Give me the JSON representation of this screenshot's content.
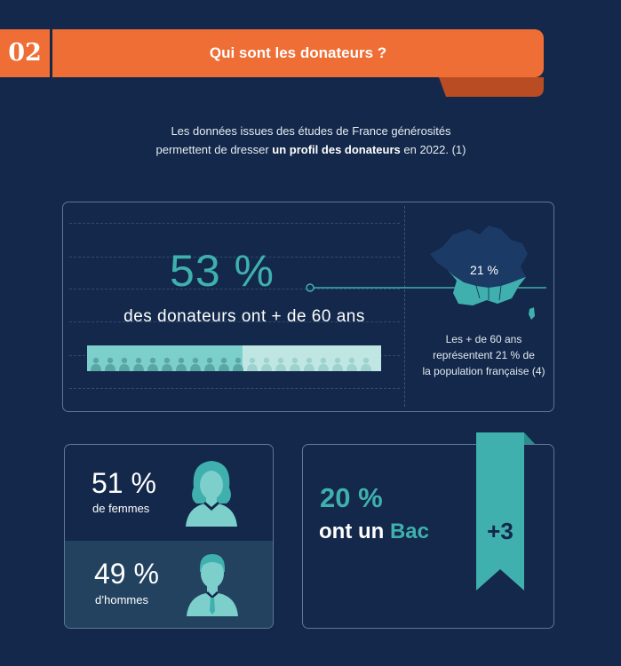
{
  "header": {
    "number": "02",
    "title": "Qui sont les donateurs ?"
  },
  "intro": {
    "line1": "Les données issues des études de France générosités",
    "line2_pre": "permettent de dresser ",
    "line2_bold": "un profil des donateurs",
    "line2_post": " en 2022. (1)"
  },
  "age_stat": {
    "percent": "53 %",
    "label": "des donateurs ont + de 60 ans",
    "share": 0.53
  },
  "france_stat": {
    "percent": "21 %",
    "caption_line1": "Les + de 60 ans",
    "caption_line2": "représentent 21 % de",
    "caption_line3": "la population française (4)"
  },
  "gender_stat": {
    "women_percent": "51 %",
    "women_label": "de femmes",
    "men_percent": "49 %",
    "men_label": "d’hommes"
  },
  "education_stat": {
    "percent": "20 %",
    "label_pre": "ont un ",
    "label_accent": "Bac",
    "level": "+3"
  },
  "colors": {
    "background": "#13284a",
    "orange": "#ee6e36",
    "teal": "#3fb0ae",
    "teal_light": "#7ccfcb"
  }
}
